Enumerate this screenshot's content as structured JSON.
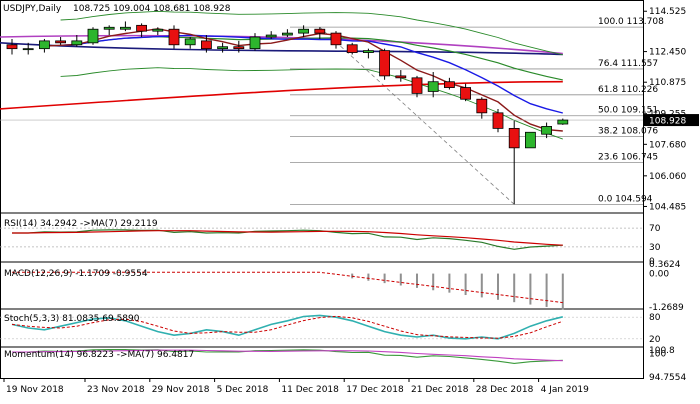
{
  "header": {
    "symbol": "USDJPY,Daily",
    "ohlc": "108.725 109.004 108.681 108.928"
  },
  "price_axis": {
    "ticks": [
      "114.525",
      "112.450",
      "110.875",
      "109.255",
      "107.680",
      "106.060",
      "104.485"
    ],
    "current_value": "108.928"
  },
  "fib_labels": [
    {
      "text": "100.0 113.708",
      "value": 113.708
    },
    {
      "text": "76.4 111.557",
      "value": 111.557
    },
    {
      "text": "61.8 110.226",
      "value": 110.226
    },
    {
      "text": "50.0 109.151",
      "value": 109.151
    },
    {
      "text": "38.2 108.076",
      "value": 108.076
    },
    {
      "text": "23.6 106.745",
      "value": 106.745
    },
    {
      "text": "0.0 104.594",
      "value": 104.594
    }
  ],
  "panels": {
    "rsi": {
      "label": "RSI(14) 34.2942 ->MA(7) 29.2119",
      "ticks": [
        "70",
        "30",
        "0"
      ]
    },
    "macd": {
      "label": "MACD(12,26,9) -1.1709 -0.9554",
      "ticks": [
        "0.3624",
        "0.00",
        "-1.2689"
      ]
    },
    "stoch": {
      "label": "Stoch(5,3,3) 81.0835 69.5890",
      "ticks": [
        "80",
        "20"
      ]
    },
    "momentum": {
      "label": "Momentum(14) 96.8223 ->MA(7) 96.4817",
      "ticks": [
        "100.8",
        "100",
        "94.7554"
      ]
    }
  },
  "time_axis": {
    "labels": [
      "19 Nov 2018",
      "23 Nov 2018",
      "29 Nov 2018",
      "5 Dec 2018",
      "11 Dec 2018",
      "17 Dec 2018",
      "21 Dec 2018",
      "28 Dec 2018",
      "4 Jan 2019"
    ]
  },
  "colors": {
    "bull": "#2db52d",
    "bear": "#e81010",
    "wick": "#000000",
    "ma_darkred": "#8b1a1a",
    "ma_blue": "#1a1ae6",
    "ma_green": "#2a8a2a",
    "ma_purple": "#b040c0",
    "ma_navy": "#1a1a7a",
    "ma_red": "#e00000",
    "bb_green": "#2a8a2a",
    "rsi_line": "#2a7a2a",
    "rsi_ma": "#cc0000",
    "macd_hist": "#909090",
    "macd_signal": "#cc0000",
    "stoch_k": "#30b0b0",
    "stoch_d": "#cc0000",
    "mom_line": "#3a9a3a",
    "mom_ma": "#c040c0"
  },
  "chart_data": {
    "type": "candlestick",
    "title": "USDJPY,Daily",
    "ylim": [
      104.2,
      115.0
    ],
    "candles": [
      {
        "date": "2018-11-19",
        "o": 112.8,
        "h": 113.1,
        "l": 112.3,
        "c": 112.6
      },
      {
        "date": "2018-11-20",
        "o": 112.6,
        "h": 112.9,
        "l": 112.3,
        "c": 112.6
      },
      {
        "date": "2018-11-21",
        "o": 112.6,
        "h": 113.1,
        "l": 112.4,
        "c": 113.0
      },
      {
        "date": "2018-11-22",
        "o": 113.0,
        "h": 113.2,
        "l": 112.8,
        "c": 112.9
      },
      {
        "date": "2018-11-23",
        "o": 112.8,
        "h": 113.3,
        "l": 112.7,
        "c": 113.0
      },
      {
        "date": "2018-11-26",
        "o": 112.9,
        "h": 113.7,
        "l": 112.8,
        "c": 113.6
      },
      {
        "date": "2018-11-27",
        "o": 113.6,
        "h": 113.8,
        "l": 113.3,
        "c": 113.7
      },
      {
        "date": "2018-11-28",
        "o": 113.6,
        "h": 114.0,
        "l": 113.5,
        "c": 113.7
      },
      {
        "date": "2018-11-29",
        "o": 113.8,
        "h": 113.9,
        "l": 113.2,
        "c": 113.5
      },
      {
        "date": "2018-11-30",
        "o": 113.5,
        "h": 113.7,
        "l": 113.3,
        "c": 113.6
      },
      {
        "date": "2018-12-03",
        "o": 113.6,
        "h": 113.8,
        "l": 112.6,
        "c": 112.8
      },
      {
        "date": "2018-12-04",
        "o": 112.8,
        "h": 113.2,
        "l": 112.6,
        "c": 113.1
      },
      {
        "date": "2018-12-05",
        "o": 113.0,
        "h": 113.3,
        "l": 112.4,
        "c": 112.6
      },
      {
        "date": "2018-12-06",
        "o": 112.6,
        "h": 112.9,
        "l": 112.4,
        "c": 112.7
      },
      {
        "date": "2018-12-07",
        "o": 112.7,
        "h": 113.0,
        "l": 112.4,
        "c": 112.6
      },
      {
        "date": "2018-12-10",
        "o": 112.6,
        "h": 113.4,
        "l": 112.5,
        "c": 113.2
      },
      {
        "date": "2018-12-11",
        "o": 113.2,
        "h": 113.5,
        "l": 113.1,
        "c": 113.3
      },
      {
        "date": "2018-12-12",
        "o": 113.3,
        "h": 113.6,
        "l": 113.2,
        "c": 113.4
      },
      {
        "date": "2018-12-13",
        "o": 113.4,
        "h": 113.8,
        "l": 113.2,
        "c": 113.6
      },
      {
        "date": "2018-12-14",
        "o": 113.6,
        "h": 113.7,
        "l": 113.1,
        "c": 113.4
      },
      {
        "date": "2018-12-17",
        "o": 113.4,
        "h": 113.5,
        "l": 112.6,
        "c": 112.8
      },
      {
        "date": "2018-12-18",
        "o": 112.8,
        "h": 112.9,
        "l": 112.3,
        "c": 112.4
      },
      {
        "date": "2018-12-19",
        "o": 112.4,
        "h": 112.6,
        "l": 112.1,
        "c": 112.5
      },
      {
        "date": "2018-12-20",
        "o": 112.5,
        "h": 112.6,
        "l": 111.0,
        "c": 111.2
      },
      {
        "date": "2018-12-21",
        "o": 111.2,
        "h": 111.5,
        "l": 110.9,
        "c": 111.1
      },
      {
        "date": "2018-12-24",
        "o": 111.1,
        "h": 111.2,
        "l": 110.1,
        "c": 110.3
      },
      {
        "date": "2018-12-25",
        "o": 110.4,
        "h": 111.4,
        "l": 110.1,
        "c": 110.9
      },
      {
        "date": "2018-12-26",
        "o": 110.9,
        "h": 111.1,
        "l": 110.5,
        "c": 110.6
      },
      {
        "date": "2018-12-27",
        "o": 110.6,
        "h": 110.8,
        "l": 109.9,
        "c": 110.0
      },
      {
        "date": "2018-12-28",
        "o": 110.0,
        "h": 110.1,
        "l": 109.0,
        "c": 109.3
      },
      {
        "date": "2018-12-31",
        "o": 109.3,
        "h": 109.5,
        "l": 108.3,
        "c": 108.5
      },
      {
        "date": "2019-01-02",
        "o": 108.5,
        "h": 108.9,
        "l": 104.594,
        "c": 107.5
      },
      {
        "date": "2019-01-03",
        "o": 107.5,
        "h": 108.3,
        "l": 107.5,
        "c": 108.3
      },
      {
        "date": "2019-01-04",
        "o": 108.2,
        "h": 108.8,
        "l": 108.0,
        "c": 108.6
      },
      {
        "date": "2019-01-07",
        "o": 108.725,
        "h": 109.004,
        "l": 108.681,
        "c": 108.928
      }
    ]
  }
}
